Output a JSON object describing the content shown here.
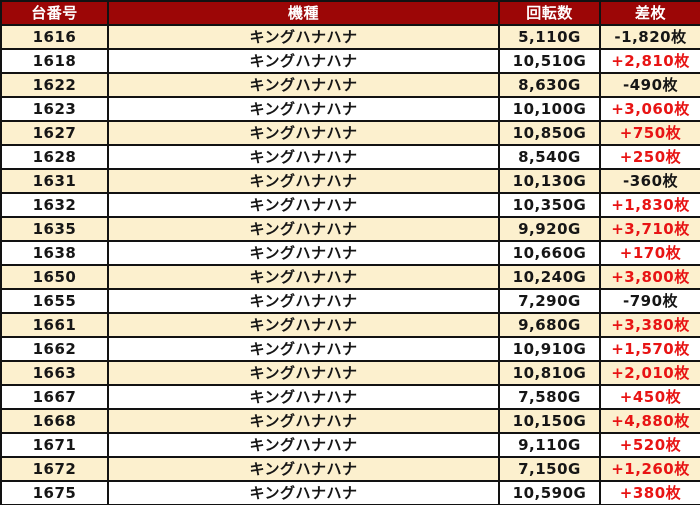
{
  "chart_data": {
    "type": "table",
    "title": "",
    "columns": [
      "台番号",
      "機種",
      "回転数",
      "差枚"
    ],
    "rows": [
      {
        "no": "1616",
        "model": "キングハナハナ",
        "spins": "5,110G",
        "diff": "-1,820枚"
      },
      {
        "no": "1618",
        "model": "キングハナハナ",
        "spins": "10,510G",
        "diff": "+2,810枚"
      },
      {
        "no": "1622",
        "model": "キングハナハナ",
        "spins": "8,630G",
        "diff": "-490枚"
      },
      {
        "no": "1623",
        "model": "キングハナハナ",
        "spins": "10,100G",
        "diff": "+3,060枚"
      },
      {
        "no": "1627",
        "model": "キングハナハナ",
        "spins": "10,850G",
        "diff": "+750枚"
      },
      {
        "no": "1628",
        "model": "キングハナハナ",
        "spins": "8,540G",
        "diff": "+250枚"
      },
      {
        "no": "1631",
        "model": "キングハナハナ",
        "spins": "10,130G",
        "diff": "-360枚"
      },
      {
        "no": "1632",
        "model": "キングハナハナ",
        "spins": "10,350G",
        "diff": "+1,830枚"
      },
      {
        "no": "1635",
        "model": "キングハナハナ",
        "spins": "9,920G",
        "diff": "+3,710枚"
      },
      {
        "no": "1638",
        "model": "キングハナハナ",
        "spins": "10,660G",
        "diff": "+170枚"
      },
      {
        "no": "1650",
        "model": "キングハナハナ",
        "spins": "10,240G",
        "diff": "+3,800枚"
      },
      {
        "no": "1655",
        "model": "キングハナハナ",
        "spins": "7,290G",
        "diff": "-790枚"
      },
      {
        "no": "1661",
        "model": "キングハナハナ",
        "spins": "9,680G",
        "diff": "+3,380枚"
      },
      {
        "no": "1662",
        "model": "キングハナハナ",
        "spins": "10,910G",
        "diff": "+1,570枚"
      },
      {
        "no": "1663",
        "model": "キングハナハナ",
        "spins": "10,810G",
        "diff": "+2,010枚"
      },
      {
        "no": "1667",
        "model": "キングハナハナ",
        "spins": "7,580G",
        "diff": "+450枚"
      },
      {
        "no": "1668",
        "model": "キングハナハナ",
        "spins": "10,150G",
        "diff": "+4,880枚"
      },
      {
        "no": "1671",
        "model": "キングハナハナ",
        "spins": "9,110G",
        "diff": "+520枚"
      },
      {
        "no": "1672",
        "model": "キングハナハナ",
        "spins": "7,150G",
        "diff": "+1,260枚"
      },
      {
        "no": "1675",
        "model": "キングハナハナ",
        "spins": "10,590G",
        "diff": "+380枚"
      }
    ]
  },
  "colors": {
    "header_bg": "#9c0606",
    "header_text": "#ffffff",
    "row_bg": "#ffffff",
    "row_alt_bg": "#fcf0ce",
    "border": "#121212",
    "text": "#161616",
    "positive_diff": "#e81414"
  }
}
